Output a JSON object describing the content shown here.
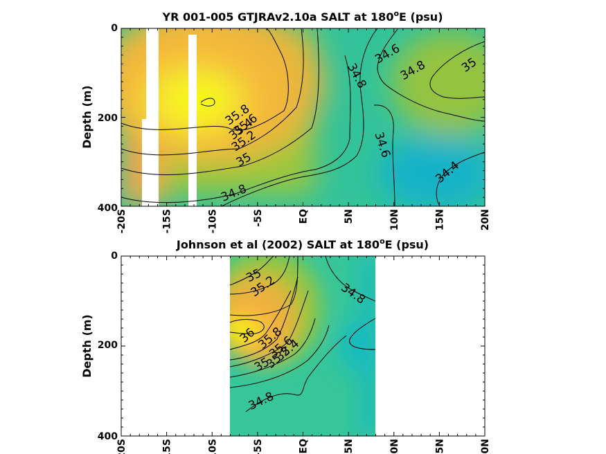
{
  "chart_data": [
    {
      "type": "contour",
      "title_main": "YR 001-005 GTJRAv2.10a SALT at 180",
      "title_sup": "o",
      "title_end": "E (psu)",
      "ylabel": "Depth (m)",
      "xlim": [
        -20,
        20
      ],
      "ylim": [
        0,
        400
      ],
      "x_ticks": [
        "-20S",
        "-15S",
        "-10S",
        "-5S",
        "EQ",
        "5N",
        "10N",
        "15N",
        "20N"
      ],
      "y_ticks": [
        "0",
        "200",
        "400"
      ],
      "missing_columns": [
        [
          -17.5,
          -16.1
        ],
        [
          -12.2,
          -11.3
        ]
      ],
      "salinity_max": 35.9,
      "contour_labels": [
        {
          "text": "35.8",
          "x": -7.2,
          "y": 195
        },
        {
          "text": "35.6",
          "x": -6.3,
          "y": 217
        },
        {
          "text": "35.4",
          "x": -6.8,
          "y": 227
        },
        {
          "text": "35.2",
          "x": -6.5,
          "y": 254
        },
        {
          "text": "35",
          "x": -6.5,
          "y": 296
        },
        {
          "text": "34.8",
          "x": -7.6,
          "y": 371
        },
        {
          "text": "34.8",
          "x": 5.9,
          "y": 107
        },
        {
          "text": "34.6",
          "x": 9.3,
          "y": 58
        },
        {
          "text": "34.8",
          "x": 12.1,
          "y": 95
        },
        {
          "text": "35",
          "x": 18.3,
          "y": 83
        },
        {
          "text": "34.6",
          "x": 8.7,
          "y": 262
        },
        {
          "text": "34.4",
          "x": 15.9,
          "y": 324
        }
      ]
    },
    {
      "type": "contour",
      "title_main": "Johnson et al (2002) SALT at 180",
      "title_sup": "o",
      "title_end": "E (psu)",
      "ylabel": "Depth (m)",
      "xlim": [
        -20,
        20
      ],
      "ylim": [
        0,
        400
      ],
      "x_ticks": [
        "-20S",
        "-15S",
        "-10S",
        "-5S",
        "EQ",
        "5N",
        "10N",
        "15N",
        "20N"
      ],
      "y_ticks": [
        "0",
        "200",
        "400"
      ],
      "data_extent_x": [
        -8,
        8
      ],
      "salinity_max": 36.1,
      "contour_labels": [
        {
          "text": "35",
          "x": -5.4,
          "y": 44
        },
        {
          "text": "35.2",
          "x": -4.4,
          "y": 68
        },
        {
          "text": "36",
          "x": -6.1,
          "y": 177
        },
        {
          "text": "35.8",
          "x": -3.6,
          "y": 183
        },
        {
          "text": "35.6",
          "x": -2.4,
          "y": 203
        },
        {
          "text": "35.4",
          "x": -1.7,
          "y": 210
        },
        {
          "text": "35.2",
          "x": -2.7,
          "y": 226
        },
        {
          "text": "35",
          "x": -4.5,
          "y": 242
        },
        {
          "text": "34.8",
          "x": -4.6,
          "y": 323
        },
        {
          "text": "34.8",
          "x": 5.5,
          "y": 84
        }
      ]
    }
  ]
}
